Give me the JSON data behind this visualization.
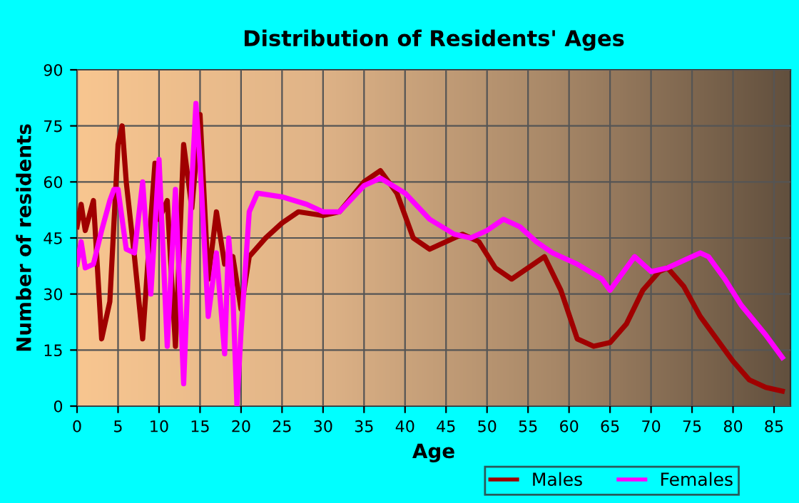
{
  "chart_data": {
    "type": "line",
    "title": "Distribution of Residents' Ages",
    "xlabel": "Age",
    "ylabel": "Number of residents",
    "xlim": [
      0,
      87
    ],
    "xticks": [
      0,
      5,
      10,
      15,
      20,
      25,
      30,
      35,
      40,
      45,
      50,
      55,
      60,
      65,
      70,
      75,
      80,
      85
    ],
    "ylim": [
      0,
      90
    ],
    "yticks": [
      0,
      15,
      30,
      45,
      60,
      75,
      90
    ],
    "grid": true,
    "legend": "bottom right",
    "series": [
      {
        "name": "Males",
        "color": "#a00000",
        "x": [
          0,
          0.5,
          1,
          2,
          3,
          4,
          5,
          5.5,
          6,
          7,
          8,
          9,
          9.5,
          10,
          11,
          12,
          13,
          14,
          15,
          16,
          17,
          18,
          19,
          20,
          21,
          23,
          25,
          27,
          30,
          32,
          35,
          37,
          39,
          41,
          43,
          45,
          47,
          49,
          51,
          53,
          55,
          57,
          59,
          61,
          63,
          65,
          67,
          69,
          71,
          72,
          74,
          76,
          78,
          80,
          82,
          84,
          86
        ],
        "values": [
          48,
          54,
          47,
          55,
          18,
          28,
          70,
          75,
          60,
          40,
          18,
          50,
          65,
          50,
          55,
          16,
          70,
          53,
          78,
          34,
          52,
          38,
          40,
          26,
          40,
          45,
          49,
          52,
          51,
          52,
          60,
          63,
          57,
          45,
          42,
          44,
          46,
          44,
          37,
          34,
          37,
          40,
          31,
          18,
          16,
          17,
          22,
          31,
          36,
          37,
          32,
          24,
          18,
          12,
          7,
          5,
          4
        ]
      },
      {
        "name": "Females",
        "color": "#ff00ff",
        "x": [
          0,
          0.5,
          1,
          2,
          3,
          4,
          4.5,
          5,
          6,
          7,
          8,
          9,
          10,
          11,
          12,
          13,
          14,
          14.5,
          15,
          16,
          17,
          18,
          18.5,
          19,
          19.5,
          20,
          21,
          22,
          25,
          28,
          30,
          32,
          35,
          37,
          40,
          43,
          46,
          48,
          50,
          52,
          54,
          56,
          58,
          61,
          64,
          65,
          67,
          68,
          70,
          72,
          74,
          76,
          77,
          79,
          81,
          84,
          86
        ],
        "values": [
          38,
          44,
          37,
          38,
          47,
          55,
          58,
          58,
          42,
          41,
          60,
          30,
          66,
          16,
          58,
          6,
          60,
          81,
          65,
          24,
          41,
          14,
          45,
          30,
          0,
          20,
          52,
          57,
          56,
          54,
          52,
          52,
          59,
          61,
          57,
          50,
          46,
          45,
          47,
          50,
          48,
          44,
          41,
          38,
          34,
          31,
          37,
          40,
          36,
          37,
          39,
          41,
          40,
          34,
          27,
          19,
          13
        ]
      }
    ]
  }
}
